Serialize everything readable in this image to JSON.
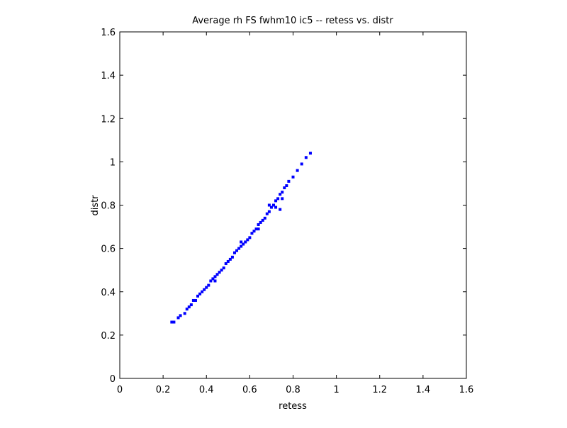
{
  "chart_data": {
    "type": "scatter",
    "title": "Average rh FS fwhm10 ic5 -- retess vs. distr",
    "x_label": "retess",
    "y_label": "distr",
    "color": "#0000ff",
    "x": [
      0.24,
      0.25,
      0.27,
      0.28,
      0.3,
      0.31,
      0.32,
      0.33,
      0.34,
      0.35,
      0.36,
      0.37,
      0.38,
      0.39,
      0.4,
      0.41,
      0.42,
      0.43,
      0.44,
      0.45,
      0.46,
      0.47,
      0.48,
      0.49,
      0.5,
      0.51,
      0.52,
      0.53,
      0.54,
      0.55,
      0.56,
      0.57,
      0.58,
      0.59,
      0.6,
      0.61,
      0.62,
      0.63,
      0.64,
      0.65,
      0.66,
      0.67,
      0.68,
      0.69,
      0.7,
      0.71,
      0.72,
      0.73,
      0.74,
      0.75,
      0.76,
      0.77,
      0.78,
      0.8,
      0.82,
      0.84,
      0.86,
      0.88,
      0.72,
      0.75,
      0.69,
      0.74,
      0.44,
      0.56,
      0.64
    ],
    "y": [
      0.26,
      0.26,
      0.28,
      0.29,
      0.3,
      0.32,
      0.33,
      0.34,
      0.36,
      0.36,
      0.38,
      0.39,
      0.4,
      0.41,
      0.42,
      0.43,
      0.45,
      0.46,
      0.47,
      0.48,
      0.49,
      0.5,
      0.51,
      0.53,
      0.54,
      0.55,
      0.56,
      0.58,
      0.59,
      0.6,
      0.61,
      0.62,
      0.63,
      0.64,
      0.65,
      0.67,
      0.68,
      0.69,
      0.71,
      0.72,
      0.73,
      0.74,
      0.76,
      0.77,
      0.79,
      0.8,
      0.82,
      0.83,
      0.85,
      0.86,
      0.88,
      0.89,
      0.91,
      0.93,
      0.96,
      0.99,
      1.02,
      1.04,
      0.79,
      0.83,
      0.8,
      0.78,
      0.45,
      0.63,
      0.69
    ],
    "xlim": [
      0,
      1.6
    ],
    "ylim": [
      0,
      1.6
    ],
    "xticks": [
      0,
      0.2,
      0.4,
      0.6,
      0.8,
      1,
      1.2,
      1.4,
      1.6
    ],
    "yticks": [
      0,
      0.2,
      0.4,
      0.6,
      0.8,
      1,
      1.2,
      1.4,
      1.6
    ]
  }
}
